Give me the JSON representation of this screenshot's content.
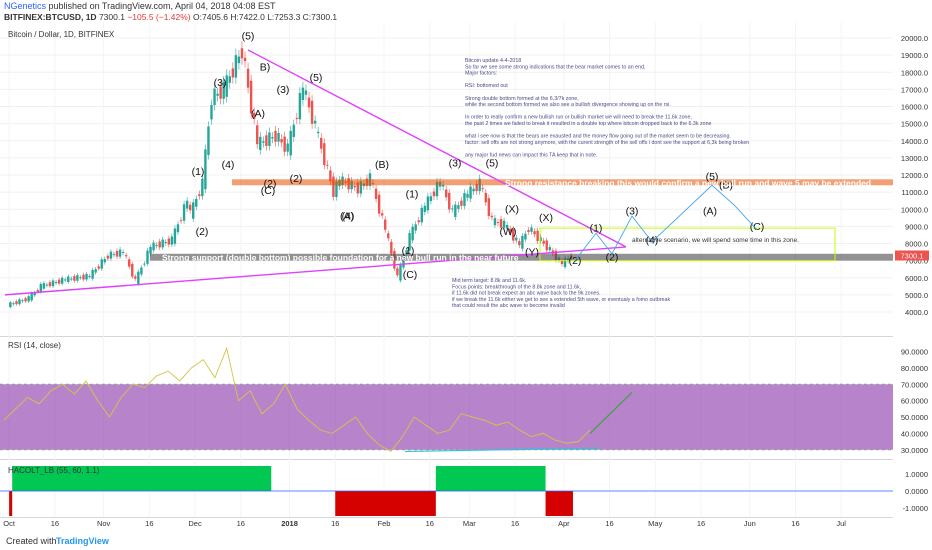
{
  "header": {
    "publish_prefix": "",
    "author": "NGenetics",
    "publish_suffix": " published on TradingView.com, April 04, 2018 04:08 EST",
    "symbol_line": "BITFINEX:BTCUSD, 1D",
    "ohlc_prefix": "7300.1",
    "change": "−105.5 (−1.42%)",
    "ohlc_rest": "O:7405.6 H:7422.0 L:7253.3 C:7300.1"
  },
  "footer": {
    "made_with": "Created with",
    "brand": "TradingView"
  },
  "colors": {
    "up": "#26a69a",
    "down": "#ef5350",
    "trendline": "#e040fb",
    "rsi": "#d4c448",
    "rsi_band": "#7b1fa2",
    "hacolt_up": "#00c853",
    "hacolt_down": "#d50000",
    "green_arrow": "#43a047",
    "cyan_arrow": "#26c6da",
    "annotation": "#4a4a8a"
  },
  "chart_data": [
    {
      "type": "candlestick",
      "title": "Bitcoin / Dollar, 1D, BITFINEX",
      "current_price_label": "7300.1",
      "y_ticks": [
        "20000.0",
        "19000.0",
        "18000.0",
        "17000.0",
        "16000.0",
        "15000.0",
        "14000.0",
        "13000.0",
        "12000.0",
        "11000.0",
        "10000.0",
        "9000.0",
        "8000.0",
        "7000.0",
        "6000.0",
        "5000.0",
        "4000.0"
      ],
      "x_ticks": [
        "Oct",
        "16",
        "Nov",
        "16",
        "Dec",
        "16",
        "2018",
        "16",
        "Feb",
        "16",
        "Mar",
        "16",
        "Apr",
        "16",
        "May",
        "16",
        "Jun",
        "16",
        "Jul"
      ],
      "series": [
        {
          "name": "price",
          "points": [
            [
              "2017-10-01",
              4400
            ],
            [
              "2017-10-08",
              4800
            ],
            [
              "2017-10-12",
              5500
            ],
            [
              "2017-10-20",
              5900
            ],
            [
              "2017-10-28",
              6100
            ],
            [
              "2017-11-03",
              7300
            ],
            [
              "2017-11-08",
              7500
            ],
            [
              "2017-11-12",
              5800
            ],
            [
              "2017-11-17",
              7800
            ],
            [
              "2017-11-24",
              8200
            ],
            [
              "2017-11-29",
              10500
            ],
            [
              "2017-11-30",
              9700
            ],
            [
              "2017-12-04",
              11500
            ],
            [
              "2017-12-07",
              16500
            ],
            [
              "2017-12-11",
              17000
            ],
            [
              "2017-12-17",
              19300
            ],
            [
              "2017-12-22",
              13800
            ],
            [
              "2017-12-28",
              14300
            ],
            [
              "2018-01-01",
              13500
            ],
            [
              "2018-01-06",
              17100
            ],
            [
              "2018-01-10",
              14800
            ],
            [
              "2018-01-16",
              11000
            ],
            [
              "2018-01-18",
              11700
            ],
            [
              "2018-01-24",
              11200
            ],
            [
              "2018-01-28",
              11800
            ],
            [
              "2018-02-02",
              8800
            ],
            [
              "2018-02-06",
              6000
            ],
            [
              "2018-02-10",
              8400
            ],
            [
              "2018-02-15",
              10200
            ],
            [
              "2018-02-20",
              11600
            ],
            [
              "2018-02-24",
              9800
            ],
            [
              "2018-03-01",
              10900
            ],
            [
              "2018-03-05",
              11500
            ],
            [
              "2018-03-09",
              9300
            ],
            [
              "2018-03-13",
              9100
            ],
            [
              "2018-03-18",
              7900
            ],
            [
              "2018-03-21",
              8900
            ],
            [
              "2018-03-27",
              7800
            ],
            [
              "2018-04-01",
              6800
            ],
            [
              "2018-04-04",
              7300
            ]
          ]
        }
      ],
      "annotations": {
        "waves": [
          "(5)",
          "(3)",
          "B)",
          "(A)",
          "(3)",
          "(5)",
          "(1)",
          "(4)",
          "(2)",
          "(C)",
          "(2)",
          "(4)",
          "(B)",
          "(A)",
          "(3)",
          "(5)",
          "(1)",
          "(X)",
          "(X)",
          "(W)",
          "(Y)",
          "(2)",
          "(C)",
          "(1)",
          "(2)",
          "(1)",
          "(3)",
          "(4)",
          "(5)",
          "(2)",
          "(B)",
          "(A)",
          "(C)"
        ],
        "resistance_label": "Strong resistance breaking this would confirm a new bull run and wave 5 may be extended",
        "support_label": "Strong support (double bottom) possible foundation for a new bull run in the near future",
        "alternative_label": "alternative scenario, we will  spend some time in this zone.",
        "notes_top": [
          "Bitcoin update 4-4-2018",
          "So far we see some strong indications that the bear market comes to an end,",
          "Major factors:",
          "",
          "RSI: bottomed out",
          "",
          "Strong double bottom formed at the 6,3/7k zone,",
          "while the second bottom formed we also see a bullish divergence showing up on the rsi.",
          "",
          "In order to really confirm a new bullish run or bullish market we will need to break the 11.6k zone,",
          "the past 2 times we failed to break it resulted in a double top where bitcoin dropped back to the 6.3k zone",
          "",
          "what i see now is that the bears are exausted and the money flow going out of the market seem to be decreasing.",
          "factor: sell offs are not strong anymore, with the curent strength of the sell offs i dont see the support at 6,3k being broken",
          "",
          "any major fud news can impact this TA keep that in note."
        ],
        "notes_bottom": [
          "Mid term target: 8.8k and 11.6k.",
          "Focus points: breakthrough of the 8.8k zone and 11.6k,",
          "if 11.6k did not break expect an abc wave back to the 9k zones.",
          "if we break the 11.6k either we get to see a extended 5th wave, or eventualy a fomo outbreak",
          "that could result the abc wave to become invalid"
        ]
      }
    },
    {
      "type": "line",
      "title": "RSI (14, close)",
      "y_ticks": [
        "90.0000",
        "80.0000",
        "70.0000",
        "60.0000",
        "50.0000",
        "40.0000",
        "30.0000"
      ],
      "ylim": [
        25,
        97
      ],
      "band": [
        30,
        70
      ],
      "series": [
        {
          "name": "RSI",
          "values": [
            48,
            55,
            62,
            58,
            66,
            70,
            64,
            72,
            60,
            50,
            62,
            70,
            68,
            75,
            78,
            72,
            80,
            85,
            74,
            92,
            60,
            66,
            52,
            58,
            70,
            55,
            48,
            42,
            40,
            45,
            50,
            40,
            33,
            29,
            38,
            50,
            45,
            40,
            42,
            52,
            50,
            48,
            45,
            47,
            42,
            38,
            40,
            36,
            34,
            35,
            42
          ]
        }
      ]
    },
    {
      "type": "bar",
      "title": "HACOLT_LB (55, 60, 1.1)",
      "y_ticks": [
        "1.0000",
        "0.0000",
        "-1.0000"
      ],
      "segments": [
        {
          "from": "2017-10-01",
          "to": "2017-10-02",
          "value": -1
        },
        {
          "from": "2017-10-02",
          "to": "2017-12-26",
          "value": 1
        },
        {
          "from": "2018-01-16",
          "to": "2018-02-18",
          "value": -1
        },
        {
          "from": "2018-02-18",
          "to": "2018-03-26",
          "value": 1
        },
        {
          "from": "2018-03-26",
          "to": "2018-04-04",
          "value": -1
        }
      ]
    }
  ]
}
